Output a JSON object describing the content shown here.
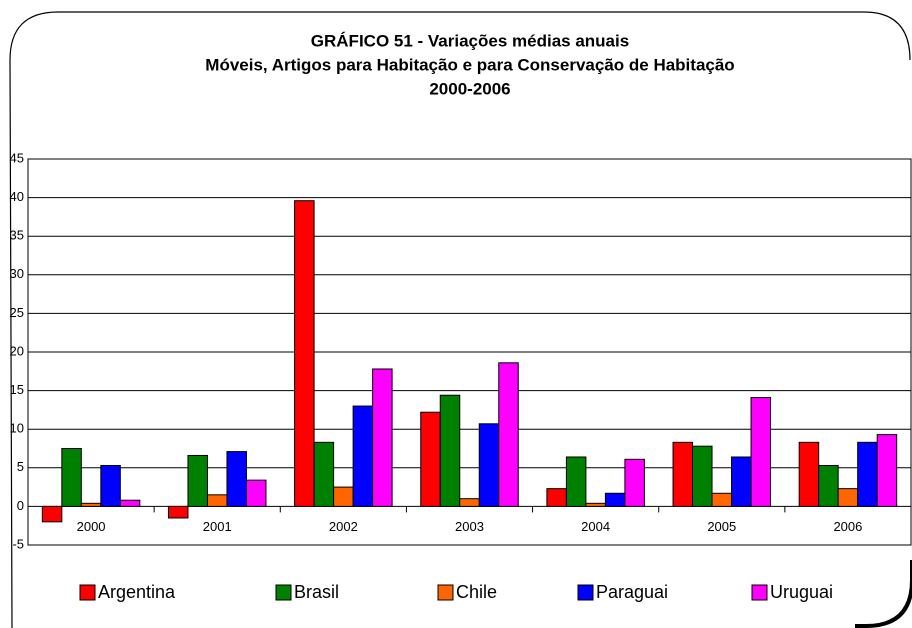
{
  "chart_data": {
    "type": "bar",
    "title": [
      "GRÁFICO 51 - Variações médias anuais",
      "Móveis, Artigos para Habitação e para Conservação de Habitação",
      "2000-2006"
    ],
    "categories": [
      "2000",
      "2001",
      "2002",
      "2003",
      "2004",
      "2005",
      "2006"
    ],
    "series": [
      {
        "name": "Argentina",
        "color": "#ff0000",
        "values": [
          -2.0,
          -1.5,
          39.6,
          12.2,
          2.3,
          8.3,
          8.3
        ]
      },
      {
        "name": "Brasil",
        "color": "#008000",
        "values": [
          7.5,
          6.6,
          8.3,
          14.4,
          6.4,
          7.8,
          5.3
        ]
      },
      {
        "name": "Chile",
        "color": "#ff6600",
        "values": [
          0.4,
          1.5,
          2.5,
          1.0,
          0.4,
          1.7,
          2.3
        ]
      },
      {
        "name": "Paraguai",
        "color": "#0000ff",
        "values": [
          5.3,
          7.1,
          13.0,
          10.7,
          1.7,
          6.4,
          8.3
        ]
      },
      {
        "name": "Uruguai",
        "color": "#ff00ff",
        "values": [
          0.8,
          3.4,
          17.8,
          18.6,
          6.1,
          14.1,
          9.3
        ]
      }
    ],
    "ylim": [
      -5,
      45
    ],
    "yticks": [
      -5,
      0,
      5,
      10,
      15,
      20,
      25,
      30,
      35,
      40,
      45
    ],
    "grid": true,
    "legend": "bottom"
  }
}
